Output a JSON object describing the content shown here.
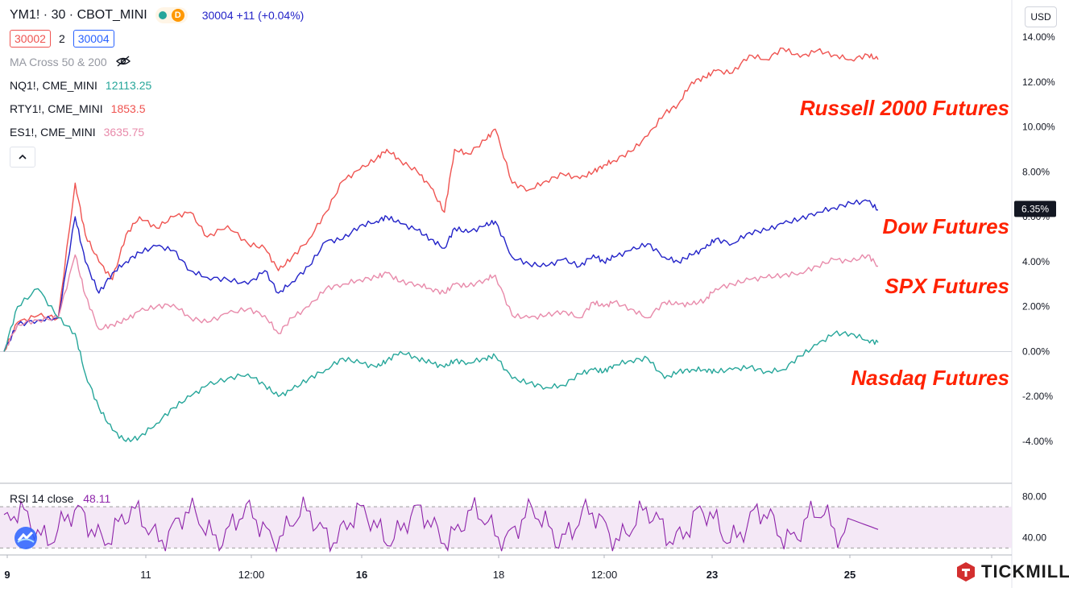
{
  "header": {
    "symbol": "YM1! · 30 · CBOT_MINI",
    "status_letter": "D",
    "quote": "30004 +11 (+0.04%)",
    "bid": "30002",
    "spread": "2",
    "ask": "30004",
    "ma_label": "MA Cross 50 & 200",
    "currency_button": "USD"
  },
  "legend": [
    {
      "label": "NQ1!, CME_MINI",
      "value": "12113.25",
      "color": "#26a69a"
    },
    {
      "label": "RTY1!, CME_MINI",
      "value": "1853.5",
      "color": "#ef5350"
    },
    {
      "label": "ES1!, CME_MINI",
      "value": "3635.75",
      "color": "#e88aaa"
    }
  ],
  "rsi": {
    "label": "RSI 14 close",
    "value": "48.11",
    "color": "#8e24aa",
    "band": [
      30,
      70
    ],
    "ylim": [
      24,
      92
    ],
    "ticks": [
      "80.00",
      "40.00"
    ]
  },
  "brand": "TICKMILL",
  "chart_data": {
    "type": "line",
    "ylim": [
      -5.5,
      15
    ],
    "y_ticks": [
      "14.00%",
      "12.00%",
      "10.00%",
      "8.00%",
      "6.00%",
      "4.00%",
      "2.00%",
      "0.00%",
      "-2.00%",
      "-4.00%"
    ],
    "x_ticks": [
      "9",
      "11",
      "12:00",
      "16",
      "18",
      "12:00",
      "23",
      "25"
    ],
    "current_label": "6.35%",
    "annotations": [
      {
        "text": "Russell 2000 Futures",
        "color": "#ff2200"
      },
      {
        "text": "Dow Futures",
        "color": "#ff2200"
      },
      {
        "text": "SPX Futures",
        "color": "#ff2200"
      },
      {
        "text": "Nasdaq Futures",
        "color": "#ff2200"
      }
    ],
    "series": [
      {
        "color": "#ef5350",
        "x": [
          0,
          0.4,
          1.0,
          1.6,
          2.1,
          2.4,
          2.8,
          3.2,
          3.6,
          4.0,
          4.5,
          5.0,
          5.5,
          6.0,
          6.6,
          7.2,
          7.7,
          8.1,
          8.5,
          9.0,
          9.5,
          10.0,
          10.5,
          11.0,
          11.3,
          11.7,
          12.2,
          12.6,
          13.0,
          13.3,
          13.7,
          14.2,
          14.5,
          15.0,
          15.5,
          16.0,
          16.5,
          17.0,
          17.4,
          17.7,
          18.0,
          18.5,
          19.0,
          19.5,
          19.9,
          20.3,
          20.7,
          21.0,
          21.5,
          22.0,
          22.5,
          23.0,
          23.5,
          24.0,
          24.5,
          25.0,
          25.5,
          25.8
        ],
        "values": [
          0,
          1.3,
          1.6,
          1.5,
          7.5,
          5.2,
          4.0,
          3.2,
          5.2,
          6.0,
          5.5,
          6.0,
          6.2,
          5.1,
          5.6,
          4.8,
          4.6,
          3.6,
          4.2,
          5.0,
          6.2,
          7.6,
          8.1,
          8.6,
          9.0,
          8.5,
          8.0,
          7.3,
          6.2,
          9.0,
          8.8,
          9.4,
          9.9,
          7.5,
          7.2,
          7.6,
          7.9,
          7.7,
          8.0,
          8.3,
          8.5,
          8.9,
          9.6,
          10.6,
          11.0,
          12.0,
          12.2,
          12.5,
          12.4,
          13.2,
          13.0,
          13.5,
          13.1,
          13.4,
          13.2,
          13.0,
          13.2,
          13.0
        ]
      },
      {
        "color": "#2323c8",
        "x": [
          0,
          0.4,
          1.0,
          1.6,
          2.1,
          2.4,
          2.8,
          3.2,
          3.6,
          4.0,
          4.5,
          5.0,
          5.5,
          6.0,
          6.6,
          7.2,
          7.7,
          8.1,
          8.5,
          9.0,
          9.5,
          10.0,
          10.5,
          11.0,
          11.3,
          11.7,
          12.2,
          12.6,
          13.0,
          13.3,
          13.7,
          14.2,
          14.5,
          15.0,
          15.5,
          16.0,
          16.5,
          17.0,
          17.4,
          17.7,
          18.0,
          18.5,
          19.0,
          19.5,
          19.9,
          20.3,
          20.7,
          21.0,
          21.5,
          22.0,
          22.5,
          23.0,
          23.5,
          24.0,
          24.5,
          25.0,
          25.5,
          25.8
        ],
        "values": [
          0,
          1.2,
          1.4,
          1.5,
          6.0,
          4.0,
          2.6,
          3.5,
          4.0,
          4.4,
          4.7,
          4.5,
          3.6,
          3.3,
          3.2,
          3.0,
          3.6,
          2.6,
          3.1,
          3.8,
          4.9,
          5.0,
          5.6,
          5.8,
          6.0,
          5.7,
          5.4,
          5.0,
          4.6,
          5.5,
          5.3,
          5.6,
          5.8,
          4.2,
          3.9,
          3.8,
          4.1,
          3.8,
          4.3,
          4.0,
          4.2,
          4.5,
          4.8,
          4.2,
          4.0,
          4.3,
          4.6,
          5.0,
          4.8,
          5.3,
          5.4,
          5.7,
          5.9,
          6.2,
          6.4,
          6.6,
          6.7,
          6.3
        ]
      },
      {
        "color": "#e88aaa",
        "x": [
          0,
          0.4,
          1.0,
          1.6,
          2.1,
          2.4,
          2.8,
          3.2,
          3.6,
          4.0,
          4.5,
          5.0,
          5.5,
          6.0,
          6.6,
          7.2,
          7.7,
          8.1,
          8.5,
          9.0,
          9.5,
          10.0,
          10.5,
          11.0,
          11.3,
          11.7,
          12.2,
          12.6,
          13.0,
          13.3,
          13.7,
          14.2,
          14.5,
          15.0,
          15.5,
          16.0,
          16.5,
          17.0,
          17.4,
          17.7,
          18.0,
          18.5,
          19.0,
          19.5,
          19.9,
          20.3,
          20.7,
          21.0,
          21.5,
          22.0,
          22.5,
          23.0,
          23.5,
          24.0,
          24.5,
          25.0,
          25.5,
          25.8
        ],
        "values": [
          0,
          1.2,
          1.4,
          1.5,
          4.3,
          2.5,
          1.0,
          1.2,
          1.4,
          1.8,
          2.0,
          2.1,
          1.5,
          1.3,
          1.7,
          1.9,
          1.6,
          0.8,
          1.5,
          2.0,
          2.8,
          3.0,
          3.2,
          3.3,
          3.5,
          3.1,
          3.0,
          2.8,
          2.6,
          3.0,
          2.9,
          3.2,
          3.4,
          1.6,
          1.5,
          1.6,
          1.8,
          1.5,
          2.2,
          2.0,
          2.2,
          1.9,
          1.5,
          2.2,
          2.1,
          2.1,
          2.3,
          2.8,
          3.0,
          3.2,
          3.3,
          3.4,
          3.5,
          3.8,
          4.1,
          4.0,
          4.3,
          3.8
        ]
      },
      {
        "color": "#26a69a",
        "x": [
          0,
          0.4,
          1.0,
          1.6,
          2.1,
          2.4,
          2.8,
          3.2,
          3.6,
          4.0,
          4.5,
          5.0,
          5.5,
          6.0,
          6.6,
          7.2,
          7.7,
          8.1,
          8.5,
          9.0,
          9.5,
          10.0,
          10.5,
          11.0,
          11.3,
          11.7,
          12.2,
          12.6,
          13.0,
          13.3,
          13.7,
          14.2,
          14.5,
          15.0,
          15.5,
          16.0,
          16.5,
          17.0,
          17.4,
          17.7,
          18.0,
          18.5,
          19.0,
          19.5,
          19.9,
          20.3,
          20.7,
          21.0,
          21.5,
          22.0,
          22.5,
          23.0,
          23.5,
          24.0,
          24.5,
          25.0,
          25.5,
          25.8
        ],
        "values": [
          0,
          2.0,
          2.8,
          1.5,
          0.8,
          -1.0,
          -2.5,
          -3.5,
          -4.0,
          -3.8,
          -3.2,
          -2.5,
          -2.0,
          -1.5,
          -1.2,
          -1.0,
          -1.5,
          -2.0,
          -1.7,
          -1.2,
          -0.8,
          -0.3,
          -0.5,
          -0.7,
          -0.4,
          0.0,
          -0.3,
          -0.5,
          -0.7,
          -0.4,
          -0.5,
          -0.3,
          -0.2,
          -1.2,
          -1.4,
          -1.6,
          -1.5,
          -1.0,
          -0.8,
          -0.9,
          -0.6,
          -0.4,
          -0.3,
          -1.2,
          -0.9,
          -0.8,
          -0.8,
          -0.9,
          -0.8,
          -0.7,
          -0.9,
          -0.8,
          -0.2,
          0.3,
          0.8,
          0.8,
          0.5,
          0.4
        ]
      }
    ]
  }
}
